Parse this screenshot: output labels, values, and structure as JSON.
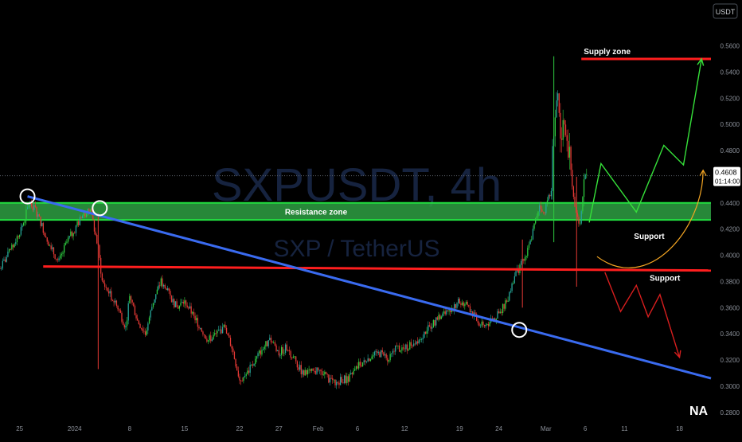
{
  "chart_data": {
    "type": "candlestick",
    "watermark": {
      "symbol": "SXPUSDT, 4h",
      "pair": "SXP / TetherUS"
    },
    "currency": "USDT",
    "brand": "NA",
    "y_ticks": [
      {
        "value": 0.58,
        "label": "0.5800"
      },
      {
        "value": 0.56,
        "label": "0.5600"
      },
      {
        "value": 0.54,
        "label": "0.5400"
      },
      {
        "value": 0.52,
        "label": "0.5200"
      },
      {
        "value": 0.5,
        "label": "0.5000"
      },
      {
        "value": 0.48,
        "label": "0.4800"
      },
      {
        "value": 0.44,
        "label": "0.4400"
      },
      {
        "value": 0.42,
        "label": "0.4200"
      },
      {
        "value": 0.4,
        "label": "0.4000"
      },
      {
        "value": 0.38,
        "label": "0.3800"
      },
      {
        "value": 0.36,
        "label": "0.3600"
      },
      {
        "value": 0.34,
        "label": "0.3400"
      },
      {
        "value": 0.32,
        "label": "0.3200"
      },
      {
        "value": 0.3,
        "label": "0.3000"
      },
      {
        "value": 0.28,
        "label": "0.2800"
      }
    ],
    "ylim": [
      0.275,
      0.595
    ],
    "x_ticks": [
      {
        "day": 0,
        "label": "25"
      },
      {
        "day": 7,
        "label": "2024"
      },
      {
        "day": 14,
        "label": "8"
      },
      {
        "day": 21,
        "label": "15"
      },
      {
        "day": 28,
        "label": "22"
      },
      {
        "day": 33,
        "label": "27"
      },
      {
        "day": 38,
        "label": "Feb"
      },
      {
        "day": 43,
        "label": "6"
      },
      {
        "day": 49,
        "label": "12"
      },
      {
        "day": 56,
        "label": "19"
      },
      {
        "day": 61,
        "label": "24"
      },
      {
        "day": 67,
        "label": "Mar"
      },
      {
        "day": 72,
        "label": "6"
      },
      {
        "day": 77,
        "label": "11"
      },
      {
        "day": 84,
        "label": "18"
      }
    ],
    "xlim": [
      -2.5,
      88
    ],
    "current_price": {
      "value": 0.4608,
      "label": "0.4608",
      "countdown": "01:14:00"
    },
    "path": [
      [
        -2.5,
        0.39
      ],
      [
        -1,
        0.405
      ],
      [
        0.5,
        0.425
      ],
      [
        1.2,
        0.44
      ],
      [
        2,
        0.435
      ],
      [
        3,
        0.42
      ],
      [
        4,
        0.405
      ],
      [
        5,
        0.395
      ],
      [
        6,
        0.41
      ],
      [
        7,
        0.42
      ],
      [
        8,
        0.43
      ],
      [
        9,
        0.435
      ],
      [
        10,
        0.405
      ],
      [
        10.5,
        0.38
      ],
      [
        11.5,
        0.37
      ],
      [
        12.5,
        0.36
      ],
      [
        13.5,
        0.345
      ],
      [
        14,
        0.37
      ],
      [
        15,
        0.35
      ],
      [
        16,
        0.34
      ],
      [
        17,
        0.365
      ],
      [
        18,
        0.38
      ],
      [
        19,
        0.37
      ],
      [
        20,
        0.36
      ],
      [
        21,
        0.365
      ],
      [
        22,
        0.355
      ],
      [
        23,
        0.345
      ],
      [
        24,
        0.335
      ],
      [
        25,
        0.34
      ],
      [
        26,
        0.345
      ],
      [
        27,
        0.33
      ],
      [
        28,
        0.305
      ],
      [
        29,
        0.31
      ],
      [
        30,
        0.32
      ],
      [
        31,
        0.33
      ],
      [
        32,
        0.335
      ],
      [
        33,
        0.325
      ],
      [
        34,
        0.33
      ],
      [
        35,
        0.32
      ],
      [
        36,
        0.31
      ],
      [
        37,
        0.31
      ],
      [
        38,
        0.312
      ],
      [
        39,
        0.307
      ],
      [
        40,
        0.302
      ],
      [
        41,
        0.305
      ],
      [
        42,
        0.306
      ],
      [
        43,
        0.315
      ],
      [
        44,
        0.32
      ],
      [
        45,
        0.323
      ],
      [
        46,
        0.325
      ],
      [
        47,
        0.32
      ],
      [
        48,
        0.33
      ],
      [
        49,
        0.328
      ],
      [
        50,
        0.333
      ],
      [
        51,
        0.337
      ],
      [
        52,
        0.345
      ],
      [
        53,
        0.35
      ],
      [
        54,
        0.355
      ],
      [
        55,
        0.36
      ],
      [
        56,
        0.365
      ],
      [
        57,
        0.362
      ],
      [
        58,
        0.352
      ],
      [
        59,
        0.345
      ],
      [
        60,
        0.35
      ],
      [
        61,
        0.355
      ],
      [
        62,
        0.365
      ],
      [
        63,
        0.385
      ],
      [
        63.6,
        0.39
      ],
      [
        64.5,
        0.4
      ],
      [
        65,
        0.41
      ],
      [
        65.6,
        0.425
      ],
      [
        66.2,
        0.44
      ],
      [
        66.8,
        0.43
      ],
      [
        67.3,
        0.45
      ],
      [
        67.6,
        0.44
      ],
      [
        68,
        0.5
      ],
      [
        68.4,
        0.52
      ],
      [
        68.8,
        0.49
      ],
      [
        69.2,
        0.495
      ],
      [
        69.6,
        0.48
      ],
      [
        70.2,
        0.47
      ],
      [
        70.6,
        0.44
      ],
      [
        71.2,
        0.42
      ],
      [
        71.8,
        0.45
      ],
      [
        72.3,
        0.46
      ]
    ],
    "candle_hi_lo": [
      {
        "day": 10,
        "high": 0.432,
        "low": 0.313
      },
      {
        "day": 68,
        "high": 0.552,
        "low": 0.41
      },
      {
        "day": 70.9,
        "high": 0.46,
        "low": 0.376
      },
      {
        "day": 64,
        "high": 0.412,
        "low": 0.36
      }
    ],
    "annotations": {
      "resistance_zone": {
        "label": "Resistance zone",
        "low": 0.427,
        "high": 0.44
      },
      "supply_zone": {
        "label": "Supply zone",
        "price": 0.55,
        "from_day": 71.5
      },
      "support_level": {
        "label": "Support",
        "price": 0.389,
        "from_day": 3
      },
      "support_bounce_label": {
        "label": "Support",
        "day": 78.2,
        "price": 0.415
      },
      "descending_trendline": {
        "from": [
          1,
          0.445
        ],
        "to": [
          88,
          0.306
        ]
      },
      "circles": [
        [
          1,
          0.445
        ],
        [
          10.2,
          0.436
        ],
        [
          63.6,
          0.343
        ]
      ],
      "bullish_path": [
        [
          72.5,
          0.425
        ],
        [
          74,
          0.47
        ],
        [
          78.5,
          0.433
        ],
        [
          82,
          0.484
        ],
        [
          84.5,
          0.469
        ],
        [
          86.8,
          0.55
        ]
      ],
      "bearish_path": [
        [
          74.5,
          0.387
        ],
        [
          76.5,
          0.357
        ],
        [
          78.5,
          0.377
        ],
        [
          80,
          0.353
        ],
        [
          81.5,
          0.37
        ],
        [
          84,
          0.322
        ]
      ],
      "curve": [
        [
          73.5,
          0.399
        ],
        [
          80,
          0.37
        ],
        [
          87,
          0.42
        ],
        [
          87,
          0.465
        ]
      ]
    },
    "colors": {
      "up": "#26a69a",
      "up_bright": "#2ecc40",
      "down": "#e53935",
      "zone_fill": "#2ea043",
      "zone_stroke": "#22e040",
      "support": "#ff1e1e",
      "trend": "#3a6bf0",
      "bull_arrow": "#36e13a",
      "bear_arrow": "#d81e1e",
      "curve": "#f5a623",
      "watermark": "#1a2a4a",
      "axis_text": "#8a8f98",
      "price_label_bg": "#ffffff"
    }
  }
}
